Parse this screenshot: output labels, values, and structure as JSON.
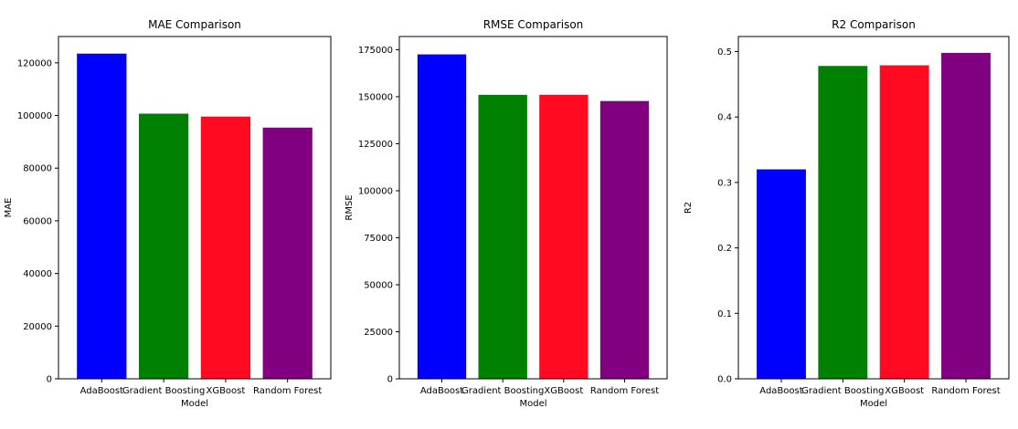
{
  "chart_data": [
    {
      "type": "bar",
      "title": "MAE Comparison",
      "xlabel": "Model",
      "ylabel": "MAE",
      "categories": [
        "AdaBoost",
        "Gradient Boosting",
        "XGBoost",
        "Random Forest"
      ],
      "values": [
        123500,
        100700,
        99600,
        95400
      ],
      "colors": [
        "#0000ff",
        "#008000",
        "#ff0a20",
        "#800080"
      ],
      "ylim": [
        0,
        130000
      ],
      "yticks": [
        0,
        20000,
        40000,
        60000,
        80000,
        100000,
        120000
      ],
      "grid": false
    },
    {
      "type": "bar",
      "title": "RMSE Comparison",
      "xlabel": "Model",
      "ylabel": "RMSE",
      "categories": [
        "AdaBoost",
        "Gradient Boosting",
        "XGBoost",
        "Random Forest"
      ],
      "values": [
        172500,
        151000,
        151000,
        147700
      ],
      "colors": [
        "#0000ff",
        "#008000",
        "#ff0a20",
        "#800080"
      ],
      "ylim": [
        0,
        182000
      ],
      "yticks": [
        0,
        25000,
        50000,
        75000,
        100000,
        125000,
        150000,
        175000
      ],
      "grid": false
    },
    {
      "type": "bar",
      "title": "R2 Comparison",
      "xlabel": "Model",
      "ylabel": "R2",
      "categories": [
        "AdaBoost",
        "Gradient Boosting",
        "XGBoost",
        "Random Forest"
      ],
      "values": [
        0.32,
        0.478,
        0.479,
        0.498
      ],
      "colors": [
        "#0000ff",
        "#008000",
        "#ff0a20",
        "#800080"
      ],
      "ylim": [
        0,
        0.523
      ],
      "yticks": [
        0.0,
        0.1,
        0.2,
        0.3,
        0.4,
        0.5
      ],
      "ytick_labels": [
        "0.0",
        "0.1",
        "0.2",
        "0.3",
        "0.4",
        "0.5"
      ],
      "grid": false
    }
  ]
}
